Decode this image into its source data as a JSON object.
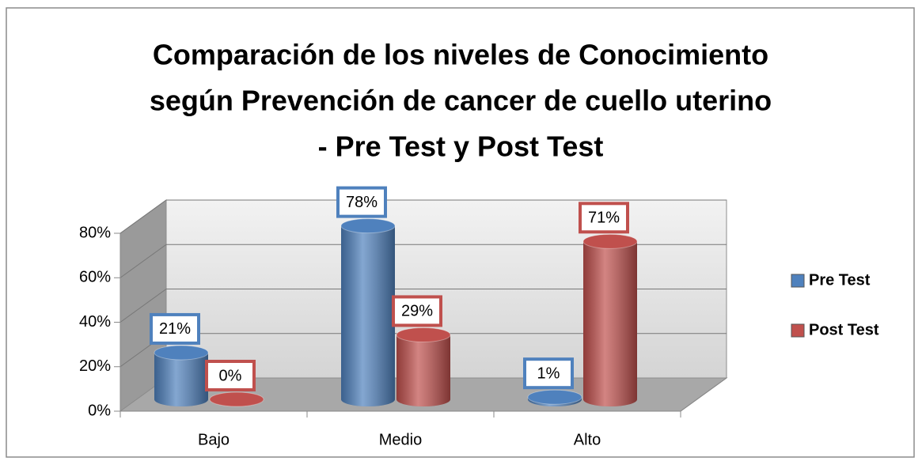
{
  "chart_data": {
    "type": "bar3d",
    "title": [
      "Comparación de los niveles de Conocimiento",
      "según Prevención de cancer de cuello uterino",
      "- Pre Test y Post Test"
    ],
    "categories": [
      "Bajo",
      "Medio",
      "Alto"
    ],
    "series": [
      {
        "name": "Pre Test",
        "color": "#4f81bd",
        "values": [
          21,
          78,
          1
        ],
        "value_labels": [
          "21%",
          "78%",
          "1%"
        ]
      },
      {
        "name": "Post Test",
        "color": "#c0504d",
        "values": [
          0,
          29,
          71
        ],
        "value_labels": [
          "0%",
          "29%",
          "71%"
        ]
      }
    ],
    "ylim": [
      0,
      80
    ],
    "yticks": [
      {
        "value": 0,
        "label": "0%"
      },
      {
        "value": 20,
        "label": "20%"
      },
      {
        "value": 40,
        "label": "40%"
      },
      {
        "value": 60,
        "label": "60%"
      },
      {
        "value": 80,
        "label": "80%"
      }
    ],
    "grid": true,
    "legend": "right"
  }
}
